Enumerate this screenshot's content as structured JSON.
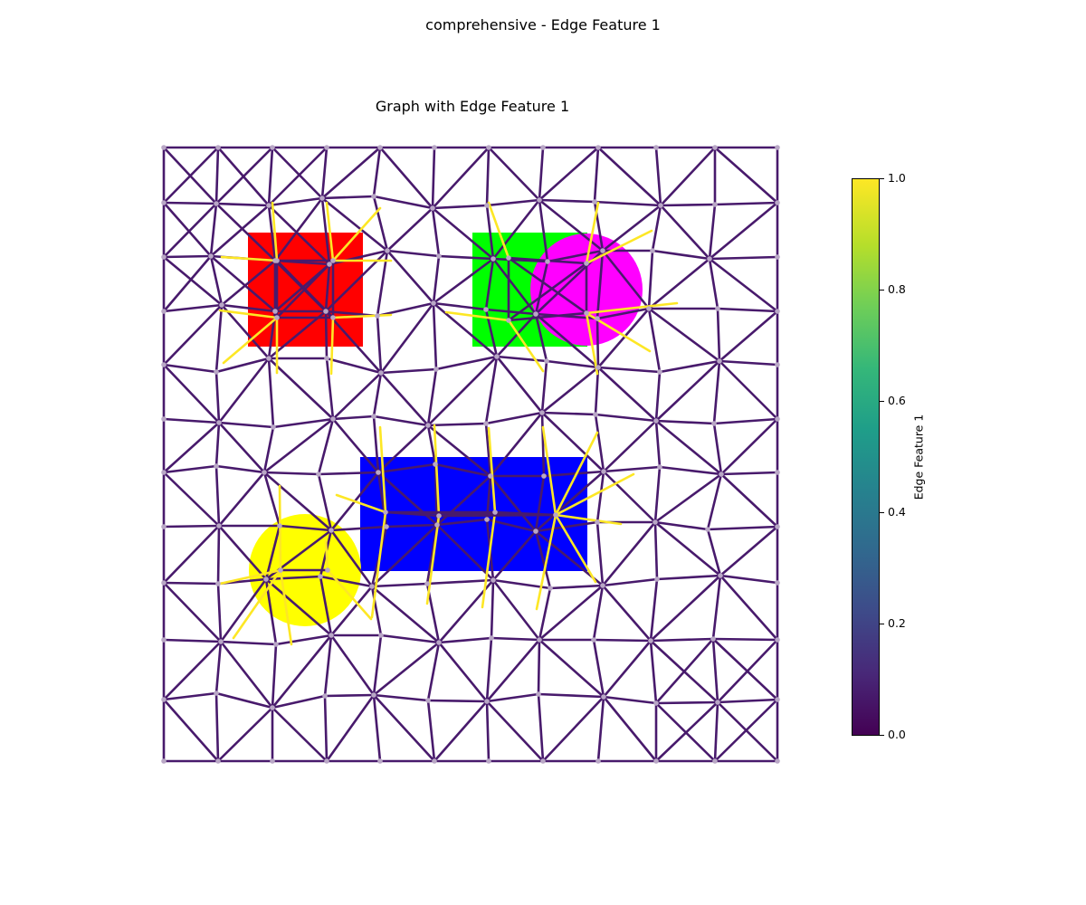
{
  "figure": {
    "title": "comprehensive - Edge Feature 1",
    "subtitle": "Graph with Edge Feature 1"
  },
  "colorbar": {
    "label": "Edge Feature 1",
    "ticks": [
      "0.0",
      "0.2",
      "0.4",
      "0.6",
      "0.8",
      "1.0"
    ],
    "colormap": "viridis",
    "range": [
      0,
      1
    ]
  },
  "shapes": [
    {
      "name": "red-square",
      "kind": "rect",
      "color": "#ff0000"
    },
    {
      "name": "green-square",
      "kind": "rect",
      "color": "#00ff00"
    },
    {
      "name": "magenta-circle",
      "kind": "circle",
      "color": "#ff00ff"
    },
    {
      "name": "blue-rectangle",
      "kind": "rect",
      "color": "#0000ff"
    },
    {
      "name": "yellow-circle",
      "kind": "circle",
      "color": "#ffff00"
    }
  ],
  "colors": {
    "edge_low": "#481a6c",
    "edge_high": "#fde725",
    "node": "#b9a7c6"
  }
}
